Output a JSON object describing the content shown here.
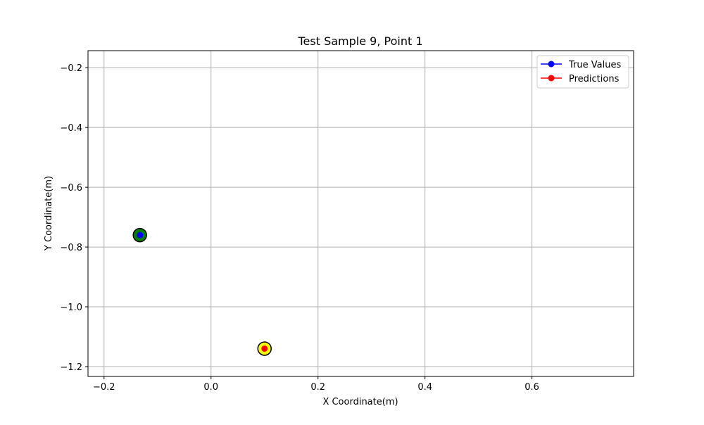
{
  "chart_data": {
    "type": "scatter",
    "title": "Test Sample 9, Point 1",
    "xlabel": "X Coordinate(m)",
    "ylabel": "Y Coordinate(m)",
    "xlim": [
      -0.23,
      0.79
    ],
    "ylim": [
      -1.233,
      -0.143
    ],
    "xticks": [
      -0.2,
      0.0,
      0.2,
      0.4,
      0.6
    ],
    "xtick_labels": [
      "−0.2",
      "0.0",
      "0.2",
      "0.4",
      "0.6"
    ],
    "yticks": [
      -0.2,
      -0.4,
      -0.6,
      -0.8,
      -1.0,
      -1.2
    ],
    "ytick_labels": [
      "−0.2",
      "−0.4",
      "−0.6",
      "−0.8",
      "−1.0",
      "−1.2"
    ],
    "grid": true,
    "legend_position": "top-right",
    "series": [
      {
        "name": "True Values",
        "color": "#0000ff",
        "highlight_color": "#008000",
        "points": [
          {
            "x": -0.133,
            "y": -0.76
          }
        ]
      },
      {
        "name": "Predictions",
        "color": "#ff0000",
        "highlight_color": "#ffff00",
        "points": [
          {
            "x": 0.1,
            "y": -1.14
          }
        ]
      }
    ]
  }
}
